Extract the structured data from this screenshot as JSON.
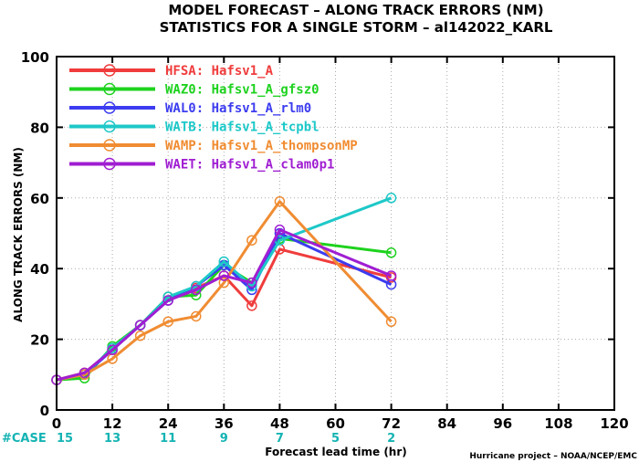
{
  "chart_data": {
    "type": "line",
    "title": "MODEL FORECAST – ALONG TRACK ERRORS (NM)",
    "subtitle": "STATISTICS FOR A SINGLE STORM – al142022_KARL",
    "xlabel": "Forecast lead time (hr)",
    "ylabel": "ALONG TRACK ERRORS (NM)",
    "xlim": [
      0,
      120
    ],
    "ylim": [
      0,
      100
    ],
    "xticks": [
      0,
      12,
      24,
      36,
      48,
      60,
      72,
      84,
      96,
      108,
      120
    ],
    "yticks": [
      0,
      20,
      40,
      60,
      80,
      100
    ],
    "grid": true,
    "legend_position": "top-left",
    "case_label": "#CASE",
    "case_counts": [
      {
        "x": 0,
        "n": "15"
      },
      {
        "x": 12,
        "n": "13"
      },
      {
        "x": 24,
        "n": "11"
      },
      {
        "x": 36,
        "n": "9"
      },
      {
        "x": 48,
        "n": "7"
      },
      {
        "x": 60,
        "n": "5"
      },
      {
        "x": 72,
        "n": "2"
      }
    ],
    "credit": "Hurricane project – NOAA/NCEP/EMC",
    "series": [
      {
        "name": "HFSA: Hafsv1_A",
        "color": "#f03c3c",
        "points": [
          [
            0,
            8.5
          ],
          [
            6,
            10.5
          ],
          [
            12,
            17
          ],
          [
            18,
            24
          ],
          [
            24,
            32
          ],
          [
            30,
            34.5
          ],
          [
            36,
            38
          ],
          [
            42,
            29.5
          ],
          [
            48,
            45.5
          ],
          [
            72,
            37.5
          ]
        ]
      },
      {
        "name": "WAZ0: Hafsv1_A_gfsz0",
        "color": "#1ed21e",
        "points": [
          [
            0,
            8.5
          ],
          [
            6,
            9
          ],
          [
            12,
            18
          ],
          [
            18,
            24
          ],
          [
            24,
            32
          ],
          [
            30,
            32.5
          ],
          [
            36,
            41
          ],
          [
            42,
            36
          ],
          [
            48,
            48.5
          ],
          [
            72,
            44.5
          ]
        ]
      },
      {
        "name": "WAL0: Hafsv1_A_rlm0",
        "color": "#3c3cf0",
        "points": [
          [
            0,
            8.5
          ],
          [
            6,
            10
          ],
          [
            12,
            17
          ],
          [
            18,
            24
          ],
          [
            24,
            31
          ],
          [
            30,
            35
          ],
          [
            36,
            41
          ],
          [
            42,
            34
          ],
          [
            48,
            50
          ],
          [
            72,
            35.5
          ]
        ]
      },
      {
        "name": "WATB: Hafsv1_A_tcpbl",
        "color": "#1ec8c8",
        "points": [
          [
            0,
            8.5
          ],
          [
            6,
            10
          ],
          [
            12,
            17.5
          ],
          [
            18,
            24
          ],
          [
            24,
            32
          ],
          [
            30,
            35
          ],
          [
            36,
            42
          ],
          [
            42,
            35
          ],
          [
            48,
            48
          ],
          [
            72,
            60
          ]
        ]
      },
      {
        "name": "WAMP: Hafsv1_A_thompsonMP",
        "color": "#f08c32",
        "points": [
          [
            0,
            8.5
          ],
          [
            6,
            10
          ],
          [
            12,
            14.5
          ],
          [
            18,
            21
          ],
          [
            24,
            25
          ],
          [
            30,
            26.5
          ],
          [
            36,
            36
          ],
          [
            42,
            48
          ],
          [
            48,
            59
          ],
          [
            72,
            25
          ]
        ]
      },
      {
        "name": "WAET: Hafsv1_A_clam0p1",
        "color": "#a01ed2",
        "points": [
          [
            0,
            8.5
          ],
          [
            6,
            10.5
          ],
          [
            12,
            17
          ],
          [
            18,
            24
          ],
          [
            24,
            31
          ],
          [
            30,
            34
          ],
          [
            36,
            38
          ],
          [
            42,
            36
          ],
          [
            48,
            51
          ],
          [
            72,
            38
          ]
        ]
      }
    ]
  }
}
